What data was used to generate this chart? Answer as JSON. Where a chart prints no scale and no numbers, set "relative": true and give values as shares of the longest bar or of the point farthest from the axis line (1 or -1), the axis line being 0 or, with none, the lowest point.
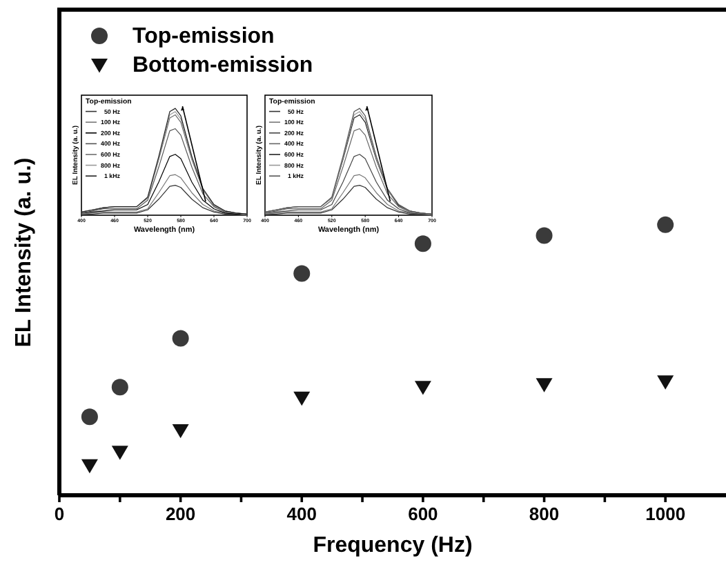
{
  "chart_data": [
    {
      "type": "scatter",
      "xlabel": "Frequency (Hz)",
      "ylabel": "EL Intensity (a. u.)",
      "relative": true,
      "legend": "top left",
      "x": [
        50,
        100,
        200,
        400,
        600,
        800,
        1000
      ],
      "xlim": [
        0,
        1100
      ],
      "xticks": [
        0,
        {
          "value": 100,
          "label": null
        },
        200,
        {
          "value": 300,
          "label": null
        },
        400,
        {
          "value": 500,
          "label": null
        },
        600,
        {
          "value": 700,
          "label": null
        },
        800,
        {
          "value": 900,
          "label": null
        },
        1000
      ],
      "series": [
        {
          "name": "Top-emission",
          "color": "#3a3a3a",
          "marker": "circle",
          "values": [
            0.29,
            0.4,
            0.58,
            0.82,
            0.93,
            0.96,
            1
          ]
        },
        {
          "name": "Bottom-emission",
          "color": "#111111",
          "marker": "triangle",
          "values": [
            0.11,
            0.16,
            0.24,
            0.36,
            0.4,
            0.41,
            0.42
          ]
        }
      ]
    },
    {
      "type": "line",
      "xlabel": "Wavelength (nm)",
      "ylabel": "EL Intensity (a. u.)",
      "legend_title": "Top-emission",
      "legend": "top left",
      "relative": true,
      "x": [
        400,
        420,
        440,
        460,
        480,
        500,
        520,
        540,
        560,
        570,
        580,
        600,
        620,
        640,
        660,
        680,
        700
      ],
      "xlim": [
        400,
        700
      ],
      "xticks": [
        400,
        460,
        520,
        580,
        640,
        700
      ],
      "series": [
        {
          "name": "50 Hz",
          "color": "#333333",
          "values": [
            0.01,
            0.01,
            0.02,
            0.02,
            0.02,
            0.02,
            0.05,
            0.15,
            0.27,
            0.28,
            0.26,
            0.15,
            0.07,
            0.03,
            0.01,
            0.01,
            0
          ]
        },
        {
          "name": "100 Hz",
          "color": "#777777",
          "values": [
            0.01,
            0.02,
            0.03,
            0.03,
            0.03,
            0.03,
            0.06,
            0.21,
            0.37,
            0.38,
            0.35,
            0.21,
            0.1,
            0.04,
            0.02,
            0.01,
            0
          ]
        },
        {
          "name": "200 Hz",
          "color": "#000000",
          "values": [
            0.02,
            0.03,
            0.04,
            0.05,
            0.05,
            0.05,
            0.1,
            0.31,
            0.55,
            0.57,
            0.53,
            0.31,
            0.14,
            0.06,
            0.02,
            0.01,
            0.01
          ]
        },
        {
          "name": "400 Hz",
          "color": "#555555",
          "values": [
            0.02,
            0.04,
            0.06,
            0.06,
            0.06,
            0.06,
            0.14,
            0.45,
            0.79,
            0.81,
            0.75,
            0.45,
            0.2,
            0.08,
            0.03,
            0.02,
            0.01
          ]
        },
        {
          "name": "600 Hz",
          "color": "#6e6e6e",
          "values": [
            0.03,
            0.05,
            0.07,
            0.08,
            0.08,
            0.08,
            0.16,
            0.52,
            0.91,
            0.94,
            0.87,
            0.52,
            0.24,
            0.09,
            0.04,
            0.02,
            0.01
          ]
        },
        {
          "name": "800 Hz",
          "color": "#999999",
          "values": [
            0.03,
            0.05,
            0.07,
            0.08,
            0.08,
            0.08,
            0.16,
            0.53,
            0.94,
            0.97,
            0.9,
            0.53,
            0.24,
            0.1,
            0.04,
            0.02,
            0.01
          ]
        },
        {
          "name": "1 kHz",
          "color": "#222222",
          "values": [
            0.03,
            0.05,
            0.07,
            0.08,
            0.08,
            0.08,
            0.17,
            0.55,
            0.97,
            1,
            0.93,
            0.55,
            0.25,
            0.1,
            0.04,
            0.02,
            0.01
          ]
        }
      ]
    },
    {
      "type": "line",
      "xlabel": "Wavelength (nm)",
      "ylabel": "EL Intensity (a. u.)",
      "legend_title": "Top-emission",
      "legend": "top left",
      "relative": true,
      "x": [
        400,
        420,
        440,
        460,
        480,
        500,
        520,
        540,
        560,
        570,
        580,
        600,
        620,
        640,
        660,
        680,
        700
      ],
      "xlim": [
        400,
        700
      ],
      "xticks": [
        400,
        460,
        520,
        580,
        640,
        700
      ],
      "series": [
        {
          "name": "50 Hz",
          "color": "#333333",
          "values": [
            0.01,
            0.01,
            0.02,
            0.02,
            0.02,
            0.02,
            0.05,
            0.15,
            0.27,
            0.28,
            0.26,
            0.15,
            0.07,
            0.03,
            0.01,
            0.01,
            0
          ]
        },
        {
          "name": "100 Hz",
          "color": "#777777",
          "values": [
            0.01,
            0.02,
            0.03,
            0.03,
            0.03,
            0.03,
            0.06,
            0.21,
            0.37,
            0.38,
            0.35,
            0.21,
            0.1,
            0.04,
            0.02,
            0.01,
            0
          ]
        },
        {
          "name": "200 Hz",
          "color": "#444444",
          "values": [
            0.02,
            0.03,
            0.04,
            0.05,
            0.05,
            0.05,
            0.1,
            0.31,
            0.55,
            0.57,
            0.53,
            0.31,
            0.14,
            0.06,
            0.02,
            0.01,
            0.01
          ]
        },
        {
          "name": "400 Hz",
          "color": "#666666",
          "values": [
            0.02,
            0.04,
            0.06,
            0.06,
            0.06,
            0.06,
            0.14,
            0.45,
            0.79,
            0.81,
            0.75,
            0.45,
            0.2,
            0.08,
            0.03,
            0.02,
            0.01
          ]
        },
        {
          "name": "600 Hz",
          "color": "#222222",
          "values": [
            0.03,
            0.05,
            0.07,
            0.08,
            0.08,
            0.08,
            0.16,
            0.52,
            0.91,
            0.94,
            0.87,
            0.52,
            0.24,
            0.09,
            0.04,
            0.02,
            0.01
          ]
        },
        {
          "name": "800 Hz",
          "color": "#999999",
          "values": [
            0.03,
            0.05,
            0.07,
            0.08,
            0.08,
            0.08,
            0.16,
            0.53,
            0.94,
            0.97,
            0.9,
            0.53,
            0.24,
            0.1,
            0.04,
            0.02,
            0.01
          ]
        },
        {
          "name": "1 kHz",
          "color": "#555555",
          "values": [
            0.03,
            0.05,
            0.07,
            0.08,
            0.08,
            0.08,
            0.17,
            0.55,
            0.97,
            1,
            0.93,
            0.55,
            0.25,
            0.1,
            0.04,
            0.02,
            0.01
          ]
        }
      ]
    }
  ]
}
